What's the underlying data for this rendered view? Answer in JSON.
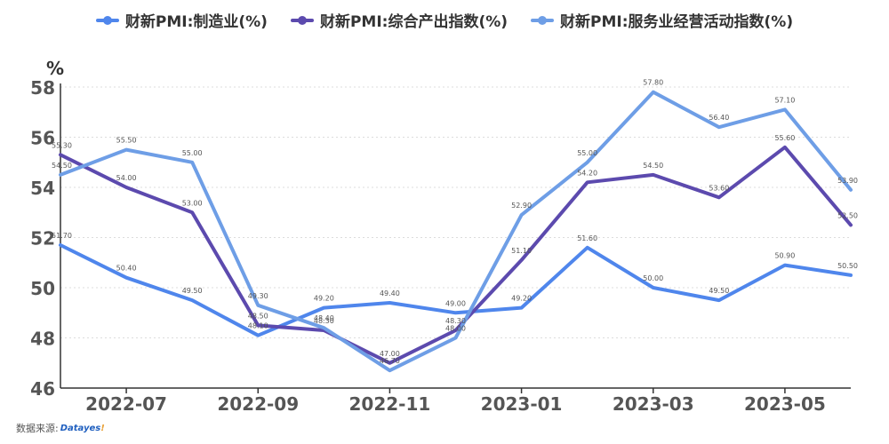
{
  "legend": [
    {
      "label": "财新PMI:制造业(%)",
      "color": "#4f86ec"
    },
    {
      "label": "财新PMI:综合产出指数(%)",
      "color": "#5c4aae"
    },
    {
      "label": "财新PMI:服务业经营活动指数(%)",
      "color": "#6e9ee6"
    }
  ],
  "source": {
    "label": "数据来源:",
    "logo_main": "Datayes",
    "logo_accent": "!"
  },
  "chart_data": {
    "type": "line",
    "x": [
      "2022-06",
      "2022-07",
      "2022-08",
      "2022-09",
      "2022-10",
      "2022-11",
      "2022-12",
      "2023-01",
      "2023-02",
      "2023-03",
      "2023-04",
      "2023-05",
      "2023-06"
    ],
    "xticks": [
      "2022-07",
      "2022-09",
      "2022-11",
      "2023-01",
      "2023-03",
      "2023-05"
    ],
    "yticks": [
      46,
      48,
      50,
      52,
      54,
      56,
      58
    ],
    "ylim": [
      46,
      58
    ],
    "ylabel": "%",
    "grid": true,
    "legend_position": "top-center",
    "series": [
      {
        "name": "财新PMI:制造业(%)",
        "color": "#4f86ec",
        "values": [
          51.7,
          50.4,
          49.5,
          48.1,
          49.2,
          49.4,
          49.0,
          49.2,
          51.6,
          50.0,
          49.5,
          50.9,
          50.5
        ],
        "labels": [
          "51.70",
          "50.40",
          "49.50",
          "48.10",
          "49.20",
          "49.40",
          "49.00",
          "49.20",
          "51.60",
          "50.00",
          "49.50",
          "50.90",
          "50.50"
        ]
      },
      {
        "name": "财新PMI:综合产出指数(%)",
        "color": "#5c4aae",
        "values": [
          55.3,
          54.0,
          53.0,
          48.5,
          48.3,
          47.0,
          48.3,
          51.1,
          54.2,
          54.5,
          53.6,
          55.6,
          52.5
        ],
        "labels": [
          "55.30",
          "54.00",
          "53.00",
          "48.50",
          "48.30",
          "47.00",
          "48.30",
          "51.10",
          "54.20",
          "54.50",
          "53.60",
          "55.60",
          "52.50"
        ]
      },
      {
        "name": "财新PMI:服务业经营活动指数(%)",
        "color": "#6e9ee6",
        "values": [
          54.5,
          55.5,
          55.0,
          49.3,
          48.4,
          46.7,
          48.0,
          52.9,
          55.0,
          57.8,
          56.4,
          57.1,
          53.9
        ],
        "labels": [
          "54.50",
          "55.50",
          "55.00",
          "49.30",
          "48.40",
          "46.70",
          "48.00",
          "52.90",
          "55.00",
          "57.80",
          "56.40",
          "57.10",
          "53.90"
        ]
      }
    ]
  }
}
